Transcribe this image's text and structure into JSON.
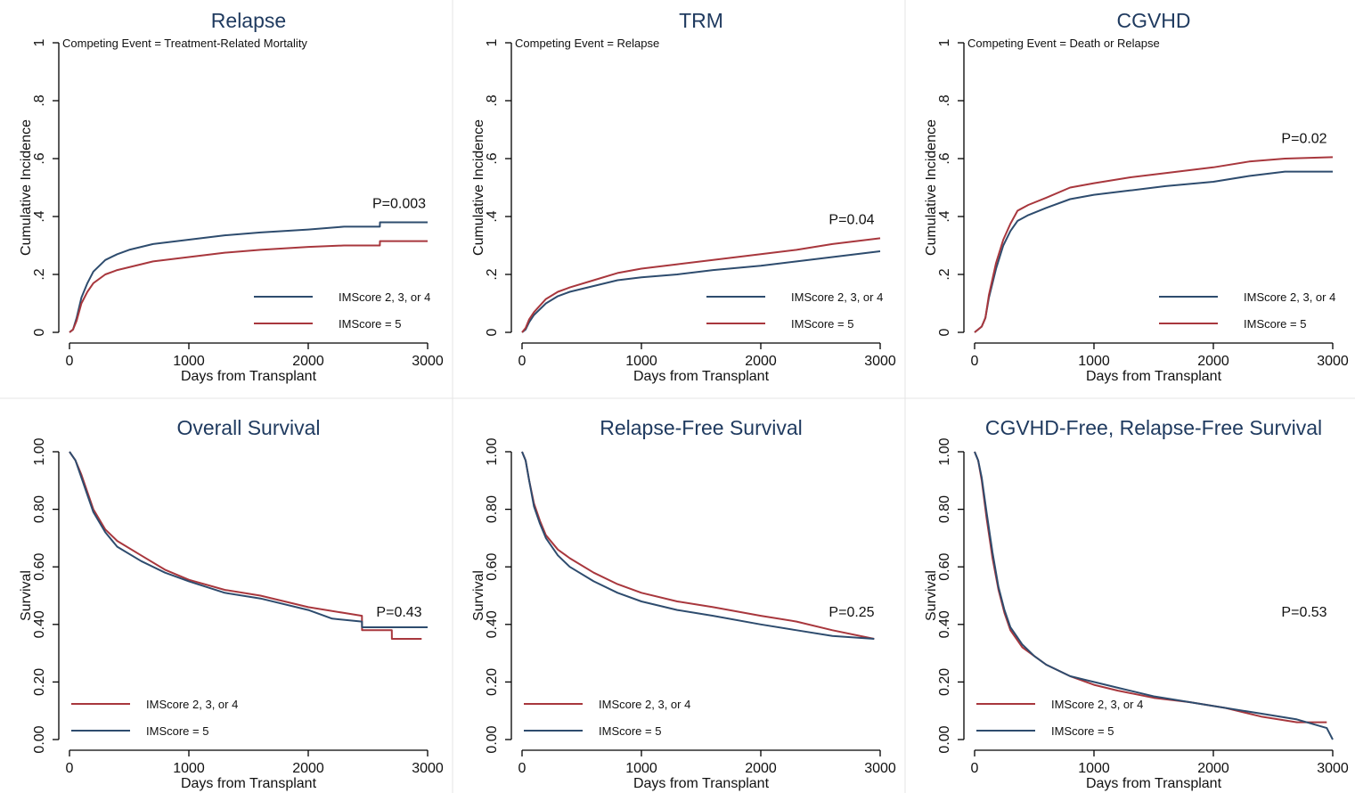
{
  "colors": {
    "blue": "#2e4c6e",
    "red": "#a8373d",
    "title": "#1f3a5f",
    "axis": "#000000",
    "divider": "#e6e6e6"
  },
  "chart_data": [
    {
      "type": "line",
      "title": "Relapse",
      "note": "Competing Event = Treatment-Related Mortality",
      "xlabel": "Days from Transplant",
      "ylabel": "Cumulative Incidence",
      "xlim": [
        0,
        3000
      ],
      "ylim": [
        0,
        1
      ],
      "xticks": [
        "0",
        "1000",
        "2000",
        "3000"
      ],
      "yticks": [
        "0",
        ".2",
        ".4",
        ".6",
        ".8",
        "1"
      ],
      "pvalue": "P=0.003",
      "legend": [
        "IMScore 2, 3, or 4",
        "IMScore = 5"
      ],
      "series": [
        {
          "name": "IMScore 2, 3, or 4",
          "color": "blue",
          "x": [
            0,
            30,
            60,
            100,
            150,
            200,
            300,
            400,
            500,
            700,
            1000,
            1300,
            1600,
            2000,
            2300,
            2600,
            2601,
            3000
          ],
          "y": [
            0,
            0.01,
            0.05,
            0.12,
            0.17,
            0.21,
            0.25,
            0.27,
            0.285,
            0.305,
            0.32,
            0.335,
            0.345,
            0.355,
            0.365,
            0.365,
            0.38,
            0.38
          ]
        },
        {
          "name": "IMScore = 5",
          "color": "red",
          "x": [
            0,
            30,
            60,
            100,
            150,
            200,
            300,
            400,
            500,
            700,
            1000,
            1300,
            1600,
            2000,
            2300,
            2600,
            2601,
            3000
          ],
          "y": [
            0,
            0.01,
            0.04,
            0.1,
            0.14,
            0.17,
            0.2,
            0.215,
            0.225,
            0.245,
            0.26,
            0.275,
            0.285,
            0.295,
            0.3,
            0.3,
            0.315,
            0.315
          ]
        }
      ]
    },
    {
      "type": "line",
      "title": "TRM",
      "note": "Competing Event = Relapse",
      "xlabel": "Days from Transplant",
      "ylabel": "Cumulative Incidence",
      "xlim": [
        0,
        3000
      ],
      "ylim": [
        0,
        1
      ],
      "xticks": [
        "0",
        "1000",
        "2000",
        "3000"
      ],
      "yticks": [
        "0",
        ".2",
        ".4",
        ".6",
        ".8",
        "1"
      ],
      "pvalue": "P=0.04",
      "legend": [
        "IMScore 2, 3, or 4",
        "IMScore = 5"
      ],
      "series": [
        {
          "name": "IMScore 2, 3, or 4",
          "color": "blue",
          "x": [
            0,
            30,
            60,
            100,
            200,
            300,
            400,
            600,
            800,
            1000,
            1300,
            1600,
            2000,
            2300,
            2600,
            2900,
            3000
          ],
          "y": [
            0,
            0.01,
            0.035,
            0.06,
            0.1,
            0.125,
            0.14,
            0.16,
            0.18,
            0.19,
            0.2,
            0.215,
            0.23,
            0.245,
            0.26,
            0.275,
            0.28
          ]
        },
        {
          "name": "IMScore = 5",
          "color": "red",
          "x": [
            0,
            30,
            60,
            100,
            200,
            300,
            400,
            600,
            800,
            1000,
            1300,
            1600,
            2000,
            2300,
            2600,
            2900,
            3000
          ],
          "y": [
            0,
            0.015,
            0.045,
            0.07,
            0.115,
            0.14,
            0.155,
            0.18,
            0.205,
            0.22,
            0.235,
            0.25,
            0.27,
            0.285,
            0.305,
            0.32,
            0.325
          ]
        }
      ]
    },
    {
      "type": "line",
      "title": "CGVHD",
      "note": "Competing Event = Death or Relapse",
      "xlabel": "Days from Transplant",
      "ylabel": "Cumulative Incidence",
      "xlim": [
        0,
        3000
      ],
      "ylim": [
        0,
        1
      ],
      "xticks": [
        "0",
        "1000",
        "2000",
        "3000"
      ],
      "yticks": [
        "0",
        ".2",
        ".4",
        ".6",
        ".8",
        "1"
      ],
      "pvalue": "P=0.02",
      "legend": [
        "IMScore 2, 3, or 4",
        "IMScore = 5"
      ],
      "series": [
        {
          "name": "IMScore 2, 3, or 4",
          "color": "blue",
          "x": [
            0,
            60,
            90,
            120,
            180,
            240,
            300,
            360,
            450,
            600,
            800,
            1000,
            1300,
            1600,
            2000,
            2300,
            2600,
            3000
          ],
          "y": [
            0,
            0.02,
            0.05,
            0.12,
            0.22,
            0.3,
            0.35,
            0.385,
            0.405,
            0.43,
            0.46,
            0.475,
            0.49,
            0.505,
            0.52,
            0.54,
            0.555,
            0.555
          ]
        },
        {
          "name": "IMScore = 5",
          "color": "red",
          "x": [
            0,
            60,
            90,
            120,
            180,
            240,
            300,
            360,
            450,
            600,
            800,
            1000,
            1300,
            1600,
            2000,
            2300,
            2600,
            3000
          ],
          "y": [
            0,
            0.02,
            0.05,
            0.13,
            0.24,
            0.32,
            0.375,
            0.42,
            0.44,
            0.465,
            0.5,
            0.515,
            0.535,
            0.55,
            0.57,
            0.59,
            0.6,
            0.605
          ]
        }
      ]
    },
    {
      "type": "line",
      "title": "Overall Survival",
      "note": "",
      "xlabel": "Days from Transplant",
      "ylabel": "Survival",
      "xlim": [
        0,
        3000
      ],
      "ylim": [
        0,
        1
      ],
      "xticks": [
        "0",
        "1000",
        "2000",
        "3000"
      ],
      "yticks": [
        "0.00",
        "0.20",
        "0.40",
        "0.60",
        "0.80",
        "1.00"
      ],
      "pvalue": "P=0.43",
      "legend": [
        "IMScore 2, 3, or 4",
        "IMScore = 5"
      ],
      "series": [
        {
          "name": "IMScore 2, 3, or 4",
          "color": "red",
          "x": [
            0,
            50,
            100,
            150,
            200,
            300,
            400,
            600,
            800,
            1000,
            1300,
            1600,
            2000,
            2300,
            2450,
            2451,
            2700,
            2701,
            2950
          ],
          "y": [
            1.0,
            0.97,
            0.92,
            0.86,
            0.8,
            0.73,
            0.69,
            0.64,
            0.59,
            0.555,
            0.52,
            0.5,
            0.46,
            0.44,
            0.43,
            0.38,
            0.38,
            0.35,
            0.35
          ]
        },
        {
          "name": "IMScore = 5",
          "color": "blue",
          "x": [
            0,
            50,
            100,
            150,
            200,
            300,
            400,
            600,
            800,
            1000,
            1300,
            1600,
            2000,
            2200,
            2450,
            2451,
            3000
          ],
          "y": [
            1.0,
            0.97,
            0.91,
            0.85,
            0.79,
            0.72,
            0.67,
            0.62,
            0.58,
            0.55,
            0.51,
            0.49,
            0.45,
            0.42,
            0.41,
            0.39,
            0.39
          ]
        }
      ]
    },
    {
      "type": "line",
      "title": "Relapse-Free Survival",
      "note": "",
      "xlabel": "Days from Transplant",
      "ylabel": "Survival",
      "xlim": [
        0,
        3000
      ],
      "ylim": [
        0,
        1
      ],
      "xticks": [
        "0",
        "1000",
        "2000",
        "3000"
      ],
      "yticks": [
        "0.00",
        "0.20",
        "0.40",
        "0.60",
        "0.80",
        "1.00"
      ],
      "pvalue": "P=0.25",
      "legend": [
        "IMScore 2, 3, or 4",
        "IMScore = 5"
      ],
      "series": [
        {
          "name": "IMScore 2, 3, or 4",
          "color": "red",
          "x": [
            0,
            30,
            60,
            100,
            150,
            200,
            300,
            400,
            600,
            800,
            1000,
            1300,
            1600,
            2000,
            2300,
            2600,
            2950
          ],
          "y": [
            1.0,
            0.97,
            0.9,
            0.82,
            0.76,
            0.71,
            0.66,
            0.63,
            0.58,
            0.54,
            0.51,
            0.48,
            0.46,
            0.43,
            0.41,
            0.38,
            0.35
          ]
        },
        {
          "name": "IMScore = 5",
          "color": "blue",
          "x": [
            0,
            30,
            60,
            100,
            150,
            200,
            300,
            400,
            600,
            800,
            1000,
            1300,
            1600,
            2000,
            2300,
            2600,
            2950
          ],
          "y": [
            1.0,
            0.97,
            0.9,
            0.81,
            0.75,
            0.7,
            0.64,
            0.6,
            0.55,
            0.51,
            0.48,
            0.45,
            0.43,
            0.4,
            0.38,
            0.36,
            0.35
          ]
        }
      ]
    },
    {
      "type": "line",
      "title": "CGVHD-Free, Relapse-Free Survival",
      "note": "",
      "xlabel": "Days from Transplant",
      "ylabel": "Survival",
      "xlim": [
        0,
        3000
      ],
      "ylim": [
        0,
        1
      ],
      "xticks": [
        "0",
        "1000",
        "2000",
        "3000"
      ],
      "yticks": [
        "0.00",
        "0.20",
        "0.40",
        "0.60",
        "0.80",
        "1.00"
      ],
      "pvalue": "P=0.53",
      "legend": [
        "IMScore 2, 3, or 4",
        "IMScore = 5"
      ],
      "series": [
        {
          "name": "IMScore 2, 3, or 4",
          "color": "red",
          "x": [
            0,
            30,
            60,
            100,
            150,
            200,
            250,
            300,
            400,
            500,
            600,
            800,
            1000,
            1200,
            1500,
            1800,
            2100,
            2400,
            2700,
            2950
          ],
          "y": [
            1.0,
            0.97,
            0.9,
            0.77,
            0.63,
            0.52,
            0.44,
            0.38,
            0.32,
            0.29,
            0.26,
            0.22,
            0.19,
            0.17,
            0.145,
            0.13,
            0.11,
            0.08,
            0.06,
            0.06
          ]
        },
        {
          "name": "IMScore = 5",
          "color": "blue",
          "x": [
            0,
            30,
            60,
            100,
            150,
            200,
            250,
            300,
            400,
            500,
            600,
            800,
            1000,
            1200,
            1500,
            1800,
            2100,
            2400,
            2700,
            2950,
            3000
          ],
          "y": [
            1.0,
            0.97,
            0.91,
            0.79,
            0.65,
            0.53,
            0.45,
            0.39,
            0.33,
            0.29,
            0.26,
            0.22,
            0.2,
            0.18,
            0.15,
            0.13,
            0.11,
            0.09,
            0.07,
            0.04,
            0.0
          ]
        }
      ]
    }
  ]
}
